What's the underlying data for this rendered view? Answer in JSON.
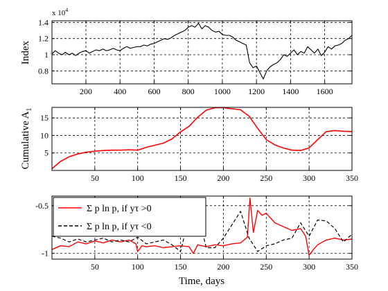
{
  "colors": {
    "index": "#000000",
    "cumulative": "#ff0000",
    "pos": "#ff0000",
    "neg": "#000000",
    "grid": "#000000",
    "axis": "#000000"
  },
  "chart_data": [
    {
      "type": "line",
      "ylabel": "Index",
      "xlabel": "",
      "y_exponent_label": "x 10^4",
      "y_exponent_base": "x 10",
      "y_exponent_power": "4",
      "xlim": [
        1,
        1760
      ],
      "ylim": [
        0.64,
        1.42
      ],
      "xticks": [
        200,
        400,
        600,
        800,
        1000,
        1200,
        1400,
        1600
      ],
      "xtick_labels": [
        "200",
        "400",
        "600",
        "800",
        "1000",
        "1200",
        "1400",
        "1600"
      ],
      "yticks": [
        0.8,
        1.0,
        1.2,
        1.4
      ],
      "ytick_labels": [
        "0.8",
        "1",
        "1.2",
        "1.4"
      ],
      "grid": true,
      "series": [
        {
          "x": [
            1,
            20,
            40,
            60,
            80,
            100,
            120,
            140,
            160,
            180,
            200,
            220,
            240,
            260,
            280,
            300,
            320,
            340,
            360,
            380,
            400,
            420,
            440,
            460,
            480,
            500,
            520,
            540,
            560,
            580,
            600,
            620,
            640,
            660,
            680,
            700,
            720,
            740,
            760,
            780,
            800,
            820,
            840,
            860,
            880,
            900,
            920,
            940,
            960,
            980,
            1000,
            1020,
            1040,
            1060,
            1080,
            1100,
            1120,
            1140,
            1160,
            1180,
            1200,
            1220,
            1240,
            1260,
            1280,
            1300,
            1320,
            1340,
            1360,
            1380,
            1400,
            1420,
            1440,
            1460,
            1480,
            1500,
            1520,
            1540,
            1560,
            1580,
            1600,
            1620,
            1640,
            1660,
            1680,
            1700,
            1720,
            1740,
            1760
          ],
          "y": [
            1.01,
            1.05,
            1.02,
            1.0,
            1.03,
            1.0,
            1.02,
            0.99,
            1.02,
            1.04,
            1.05,
            1.02,
            1.04,
            1.06,
            1.05,
            1.07,
            1.05,
            1.06,
            1.08,
            1.06,
            1.05,
            1.08,
            1.1,
            1.08,
            1.09,
            1.1,
            1.1,
            1.12,
            1.11,
            1.13,
            1.14,
            1.16,
            1.18,
            1.2,
            1.19,
            1.21,
            1.24,
            1.26,
            1.28,
            1.3,
            1.34,
            1.36,
            1.34,
            1.39,
            1.32,
            1.36,
            1.34,
            1.3,
            1.28,
            1.29,
            1.25,
            1.24,
            1.24,
            1.22,
            1.18,
            1.16,
            1.14,
            1.12,
            0.9,
            0.84,
            0.86,
            0.78,
            0.7,
            0.8,
            0.85,
            0.88,
            0.9,
            0.94,
            1.0,
            0.98,
            1.02,
            1.06,
            1.0,
            1.04,
            1.02,
            1.1,
            1.06,
            1.02,
            1.07,
            0.99,
            1.03,
            1.1,
            1.07,
            1.11,
            1.12,
            1.14,
            1.18,
            1.2,
            1.24
          ]
        }
      ]
    },
    {
      "type": "line",
      "ylabel": "Cumulative A",
      "ylabel_subscript": "1",
      "xlabel": "",
      "xlim": [
        0,
        350
      ],
      "ylim": [
        0,
        18
      ],
      "xticks": [
        50,
        100,
        150,
        200,
        250,
        300,
        350
      ],
      "xtick_labels": [
        "50",
        "100",
        "150",
        "200",
        "250",
        "300",
        "350"
      ],
      "yticks": [
        5,
        10,
        15
      ],
      "ytick_labels": [
        "5",
        "10",
        "15"
      ],
      "grid": true,
      "series": [
        {
          "x": [
            0,
            10,
            20,
            30,
            40,
            50,
            60,
            70,
            80,
            90,
            100,
            110,
            120,
            130,
            140,
            150,
            160,
            170,
            180,
            190,
            200,
            210,
            220,
            230,
            240,
            250,
            260,
            270,
            280,
            290,
            300,
            310,
            320,
            330,
            340,
            350
          ],
          "y": [
            0.5,
            2.6,
            3.9,
            4.7,
            5.2,
            5.5,
            5.7,
            5.8,
            5.8,
            5.9,
            5.8,
            6.6,
            7.2,
            7.8,
            9.0,
            11.0,
            12.6,
            15.2,
            17.2,
            17.9,
            17.9,
            17.6,
            17.3,
            15.5,
            12.0,
            8.8,
            7.3,
            6.4,
            5.8,
            5.7,
            6.4,
            8.8,
            11.1,
            11.4,
            11.2,
            11.1
          ]
        }
      ]
    },
    {
      "type": "line",
      "xlabel": "Time, days",
      "ylabel": "",
      "xlim": [
        0,
        350
      ],
      "ylim": [
        -1.06,
        -0.4
      ],
      "xticks": [
        50,
        100,
        150,
        200,
        250,
        300,
        350
      ],
      "xtick_labels": [
        "50",
        "100",
        "150",
        "200",
        "250",
        "300",
        "350"
      ],
      "yticks": [
        -1,
        -0.5
      ],
      "ytick_labels": [
        "-1",
        "-0.5"
      ],
      "grid": true,
      "legend_position": "top-left",
      "series": [
        {
          "name": "Σ p ln p, if yτ >0",
          "x": [
            0,
            10,
            20,
            30,
            40,
            50,
            60,
            70,
            80,
            90,
            98,
            100,
            105,
            110,
            120,
            130,
            140,
            150,
            160,
            165,
            170,
            180,
            190,
            200,
            210,
            220,
            228,
            231,
            235,
            240,
            245,
            250,
            260,
            270,
            280,
            290,
            296,
            300,
            305,
            310,
            320,
            330,
            340,
            350
          ],
          "y": [
            -0.96,
            -0.92,
            -0.93,
            -0.88,
            -0.9,
            -0.87,
            -0.89,
            -0.86,
            -0.88,
            -0.86,
            -0.9,
            -0.98,
            -0.92,
            -0.93,
            -0.92,
            -0.94,
            -0.93,
            -0.92,
            -0.93,
            -1.0,
            -0.91,
            -0.93,
            -0.91,
            -0.92,
            -0.9,
            -0.89,
            -0.83,
            -0.42,
            -0.78,
            -0.55,
            -0.6,
            -0.58,
            -0.68,
            -0.72,
            -0.76,
            -0.74,
            -0.82,
            -1.02,
            -0.96,
            -0.91,
            -0.86,
            -0.84,
            -0.86,
            -0.85
          ]
        },
        {
          "name": "Σ p ln p, if yτ <0",
          "x": [
            0,
            10,
            20,
            30,
            40,
            50,
            60,
            70,
            80,
            90,
            100,
            110,
            120,
            130,
            140,
            150,
            160,
            170,
            180,
            190,
            200,
            210,
            220,
            230,
            240,
            250,
            260,
            270,
            280,
            290,
            300,
            310,
            320,
            330,
            340,
            350
          ],
          "y": [
            -0.82,
            -0.84,
            -0.88,
            -0.85,
            -0.88,
            -0.86,
            -0.84,
            -0.88,
            -0.86,
            -0.88,
            -0.83,
            -0.9,
            -0.88,
            -0.86,
            -0.91,
            -0.98,
            -0.62,
            -0.58,
            -0.94,
            -0.94,
            -0.84,
            -0.7,
            -0.56,
            -0.84,
            -0.98,
            -0.92,
            -0.9,
            -0.86,
            -0.84,
            -0.68,
            -0.82,
            -0.65,
            -0.66,
            -0.74,
            -0.88,
            -0.8
          ]
        }
      ]
    }
  ]
}
